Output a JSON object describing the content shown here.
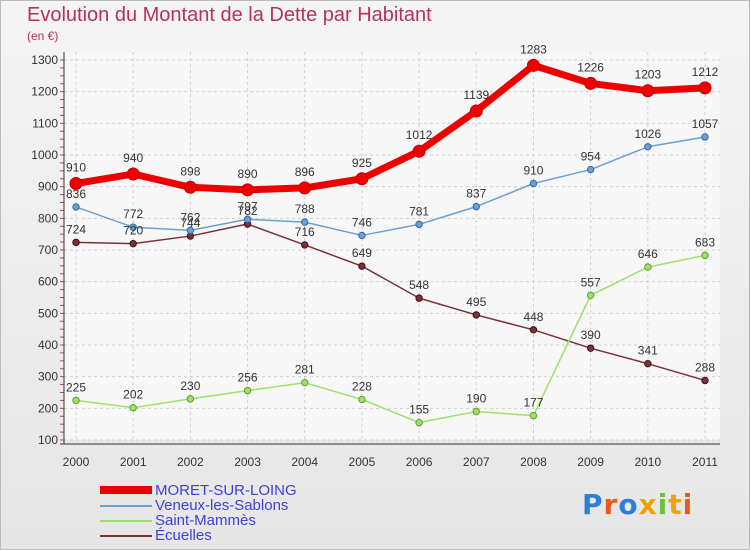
{
  "chart_data": {
    "type": "line",
    "title": "Evolution du Montant de la Dette par Habitant",
    "unit_label": "(en €)",
    "categories": [
      "2000",
      "2001",
      "2002",
      "2003",
      "2004",
      "2005",
      "2006",
      "2007",
      "2008",
      "2009",
      "2010",
      "2011"
    ],
    "ylim": [
      100,
      1300
    ],
    "yticks": [
      "100",
      "200",
      "300",
      "400",
      "500",
      "600",
      "700",
      "800",
      "900",
      "1000",
      "1100",
      "1200",
      "1300"
    ],
    "grid": "horizontal dashed",
    "legend_position": "bottom-left",
    "series": [
      {
        "name": "MORET-SUR-LOING",
        "color": "#ee0000",
        "values": [
          910,
          940,
          898,
          890,
          896,
          925,
          1012,
          1139,
          1283,
          1226,
          1203,
          1212
        ]
      },
      {
        "name": "Veneux-les-Sablons",
        "color": "#6aa0d2",
        "values": [
          836,
          772,
          762,
          797,
          788,
          746,
          781,
          837,
          910,
          954,
          1026,
          1057
        ]
      },
      {
        "name": "Saint-Mammès",
        "color": "#9ee06a",
        "values": [
          225,
          202,
          230,
          256,
          281,
          228,
          155,
          190,
          177,
          557,
          646,
          683
        ]
      },
      {
        "name": "Écuelles",
        "color": "#7a3238",
        "values": [
          724,
          720,
          744,
          782,
          716,
          649,
          548,
          495,
          448,
          390,
          341,
          288
        ]
      }
    ],
    "data_labels": [
      [
        "910",
        "940",
        "898",
        "890",
        "896",
        "925",
        "1012",
        "1139",
        "1283",
        "1226",
        "1203",
        "1212"
      ],
      [
        "836",
        "772",
        "762",
        "797",
        "788",
        "746",
        "781",
        "837",
        "910",
        "954",
        "1026",
        "1057"
      ],
      [
        "225",
        "202",
        "230",
        "256",
        "281",
        "228",
        "155",
        "190",
        "177",
        "557",
        "646",
        "683"
      ],
      [
        "724",
        "720",
        "744",
        "782",
        "716",
        "649",
        "548",
        "495",
        "448",
        "390",
        "341",
        "288"
      ]
    ]
  },
  "logo": {
    "letters": [
      "P",
      "r",
      "o",
      "x",
      "i",
      "t",
      "i"
    ],
    "colors": [
      "#2f7fd9",
      "#e8581f",
      "#2f7fd9",
      "#f0a10f",
      "#6ec03d",
      "#f0a10f",
      "#e8581f"
    ]
  }
}
